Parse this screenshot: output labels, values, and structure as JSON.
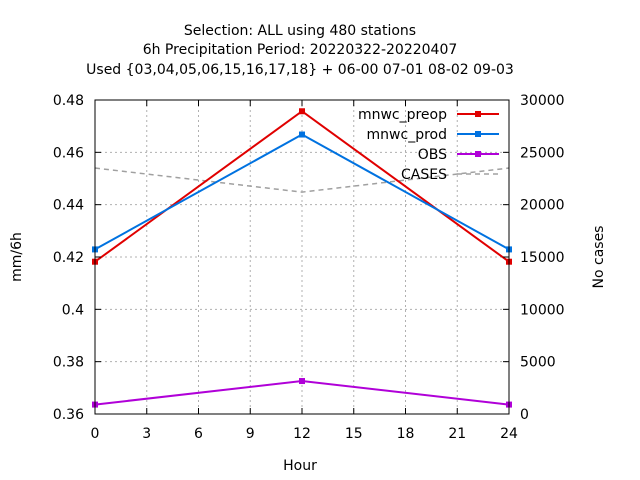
{
  "chart_data": {
    "type": "line",
    "title_lines": [
      "Selection: ALL using   480 stations",
      "6h Precipitation    Period: 20220322-20220407",
      "Used {03,04,05,06,15,16,17,18} + 06-00 07-01 08-02 09-03"
    ],
    "xlabel": "Hour",
    "ylabel": "mm/6h",
    "y2label": "No cases",
    "xlim": [
      0,
      24
    ],
    "ylim": [
      0.36,
      0.48
    ],
    "y2lim": [
      0,
      30000
    ],
    "x_ticks": [
      0,
      3,
      6,
      9,
      12,
      15,
      18,
      21,
      24
    ],
    "y_ticks": [
      "0.36",
      "0.38",
      "0.4",
      "0.42",
      "0.44",
      "0.46",
      "0.48"
    ],
    "y2_ticks": [
      "0",
      "5000",
      "10000",
      "15000",
      "20000",
      "25000",
      "30000"
    ],
    "grid": true,
    "legend_position": "top-right",
    "series": [
      {
        "name": "mnwc_preop",
        "color": "#e00000",
        "marker": true,
        "axis": "left",
        "x": [
          0,
          12,
          24
        ],
        "y": [
          0.4182,
          0.4757,
          0.4182
        ]
      },
      {
        "name": "mnwc_prod",
        "color": "#0072e0",
        "marker": true,
        "axis": "left",
        "x": [
          0,
          12,
          24
        ],
        "y": [
          0.4229,
          0.4668,
          0.4229
        ]
      },
      {
        "name": "OBS",
        "color": "#b000d8",
        "marker": true,
        "axis": "left",
        "x": [
          0,
          12,
          24
        ],
        "y": [
          0.3636,
          0.3726,
          0.3636
        ]
      },
      {
        "name": "CASES",
        "color": "#a0a0a0",
        "marker": false,
        "dashed": true,
        "axis": "right",
        "x": [
          0,
          12,
          24
        ],
        "y": [
          23500,
          21200,
          23500
        ]
      }
    ]
  }
}
